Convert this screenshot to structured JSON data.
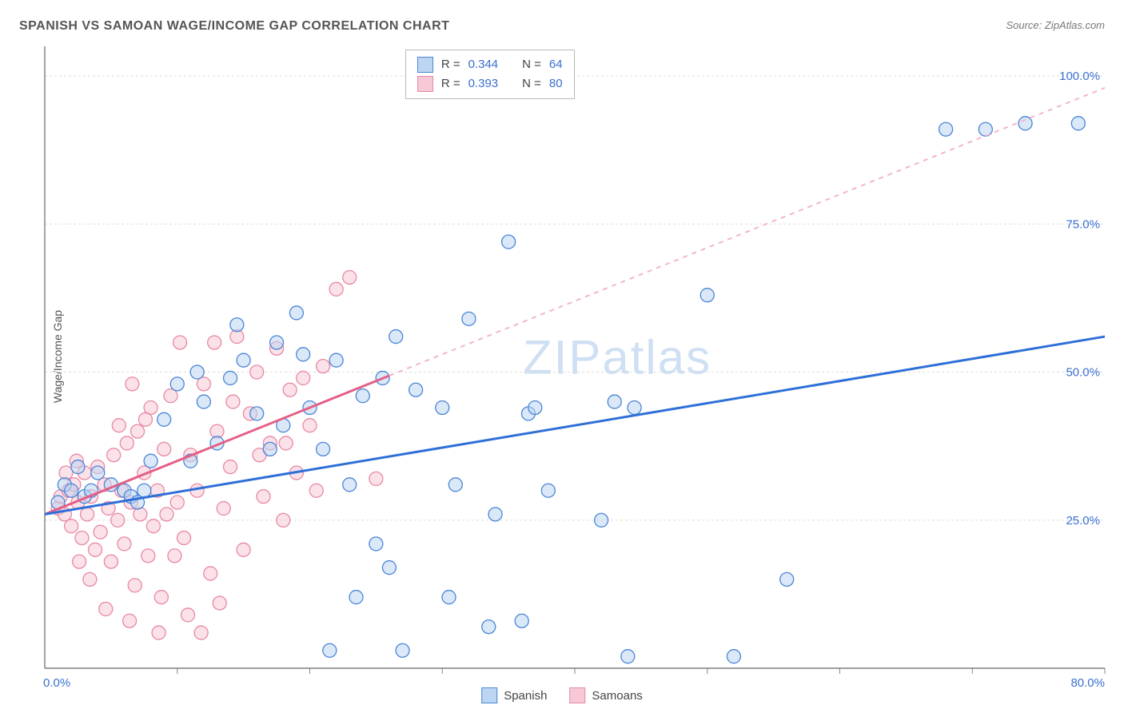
{
  "title": "SPANISH VS SAMOAN WAGE/INCOME GAP CORRELATION CHART",
  "source": "Source: ZipAtlas.com",
  "y_axis_label": "Wage/Income Gap",
  "watermark": {
    "a": "ZIP",
    "b": "atlas",
    "color": "#cfe0f4"
  },
  "colors": {
    "blue_stroke": "#4a86d8",
    "blue_fill": "#bcd5f2",
    "pink_stroke": "#e889a2",
    "pink_fill": "#f7c9d6",
    "blue_line": "#2e6fd8",
    "pink_line": "#e45f86",
    "pink_dash": "#f3b6c6",
    "grid": "#dddddd",
    "axis": "#666666",
    "tick": "#888888",
    "tick_label": "#3a6fd0",
    "bg": "#ffffff"
  },
  "chart": {
    "type": "scatter",
    "xlim": [
      0,
      80
    ],
    "ylim": [
      0,
      105
    ],
    "y_ticks": [
      25,
      50,
      75,
      100
    ],
    "y_tick_labels": [
      "25.0%",
      "50.0%",
      "75.0%",
      "100.0%"
    ],
    "x_ticks": [
      10,
      20,
      30,
      40,
      50,
      60,
      70,
      80
    ],
    "x_origin_label": "0.0%",
    "x_max_label": "80.0%",
    "marker_radius": 8.5,
    "marker_opacity": 0.55,
    "line_width": 3,
    "dash_pattern": "6 6"
  },
  "legend_stats": {
    "rows": [
      {
        "swatch_fill": "#bcd5f2",
        "swatch_stroke": "#4a86d8",
        "r_label": "R =",
        "r_value": "0.344",
        "n_label": "N =",
        "n_value": "64"
      },
      {
        "swatch_fill": "#f7c9d6",
        "swatch_stroke": "#e889a2",
        "r_label": "R =",
        "r_value": "0.393",
        "n_label": "N =",
        "n_value": "80"
      }
    ],
    "value_color": "#3a6fd0"
  },
  "bottom_legend": [
    {
      "swatch_fill": "#bcd5f2",
      "swatch_stroke": "#4a86d8",
      "label": "Spanish"
    },
    {
      "swatch_fill": "#f7c9d6",
      "swatch_stroke": "#e889a2",
      "label": "Samoans"
    }
  ],
  "series": {
    "spanish": {
      "color_fill": "#bcd5f2",
      "color_stroke": "#4a86d8",
      "trend": {
        "x1": 0,
        "y1": 26,
        "x2": 80,
        "y2": 56,
        "solid_to_x": 80
      },
      "points": [
        [
          1,
          28
        ],
        [
          1.5,
          31
        ],
        [
          2,
          30
        ],
        [
          2.5,
          34
        ],
        [
          3,
          29
        ],
        [
          3.5,
          30
        ],
        [
          4,
          33
        ],
        [
          5,
          31
        ],
        [
          6,
          30
        ],
        [
          6.5,
          29
        ],
        [
          7,
          28
        ],
        [
          7.5,
          30
        ],
        [
          8,
          35
        ],
        [
          9,
          42
        ],
        [
          10,
          48
        ],
        [
          11,
          35
        ],
        [
          11.5,
          50
        ],
        [
          12,
          45
        ],
        [
          13,
          38
        ],
        [
          14,
          49
        ],
        [
          14.5,
          58
        ],
        [
          15,
          52
        ],
        [
          16,
          43
        ],
        [
          17,
          37
        ],
        [
          17.5,
          55
        ],
        [
          18,
          41
        ],
        [
          19,
          60
        ],
        [
          19.5,
          53
        ],
        [
          20,
          44
        ],
        [
          21,
          37
        ],
        [
          21.5,
          3
        ],
        [
          22,
          52
        ],
        [
          23,
          31
        ],
        [
          23.5,
          12
        ],
        [
          24,
          46
        ],
        [
          25,
          21
        ],
        [
          25.5,
          49
        ],
        [
          26,
          17
        ],
        [
          26.5,
          56
        ],
        [
          27,
          3
        ],
        [
          28,
          47
        ],
        [
          30,
          44
        ],
        [
          30.5,
          12
        ],
        [
          31,
          31
        ],
        [
          32,
          59
        ],
        [
          33.5,
          7
        ],
        [
          34,
          26
        ],
        [
          35,
          72
        ],
        [
          36,
          8
        ],
        [
          36.5,
          43
        ],
        [
          37,
          44
        ],
        [
          38,
          30
        ],
        [
          42,
          25
        ],
        [
          43,
          45
        ],
        [
          44,
          2
        ],
        [
          44.5,
          44
        ],
        [
          50,
          63
        ],
        [
          52,
          2
        ],
        [
          56,
          15
        ],
        [
          68,
          91
        ],
        [
          71,
          91
        ],
        [
          74,
          92
        ],
        [
          78,
          92
        ]
      ]
    },
    "samoans": {
      "color_fill": "#f7c9d6",
      "color_stroke": "#e889a2",
      "trend": {
        "x1": 0,
        "y1": 26,
        "x2": 80,
        "y2": 98,
        "solid_to_x": 26
      },
      "points": [
        [
          1,
          27
        ],
        [
          1.2,
          29
        ],
        [
          1.5,
          26
        ],
        [
          1.8,
          30
        ],
        [
          2,
          24
        ],
        [
          2.2,
          31
        ],
        [
          2.5,
          28
        ],
        [
          2.8,
          22
        ],
        [
          3,
          33
        ],
        [
          3.2,
          26
        ],
        [
          3.5,
          29
        ],
        [
          3.8,
          20
        ],
        [
          4,
          34
        ],
        [
          4.2,
          23
        ],
        [
          4.5,
          31
        ],
        [
          4.8,
          27
        ],
        [
          5,
          18
        ],
        [
          5.2,
          36
        ],
        [
          5.5,
          25
        ],
        [
          5.8,
          30
        ],
        [
          6,
          21
        ],
        [
          6.2,
          38
        ],
        [
          6.5,
          28
        ],
        [
          6.8,
          14
        ],
        [
          7,
          40
        ],
        [
          7.2,
          26
        ],
        [
          7.5,
          33
        ],
        [
          7.8,
          19
        ],
        [
          8,
          44
        ],
        [
          8.2,
          24
        ],
        [
          8.5,
          30
        ],
        [
          8.8,
          12
        ],
        [
          9,
          37
        ],
        [
          9.5,
          46
        ],
        [
          10,
          28
        ],
        [
          10.2,
          55
        ],
        [
          10.5,
          22
        ],
        [
          11,
          36
        ],
        [
          11.5,
          30
        ],
        [
          12,
          48
        ],
        [
          12.5,
          16
        ],
        [
          13,
          40
        ],
        [
          13.5,
          27
        ],
        [
          14,
          34
        ],
        [
          14.5,
          56
        ],
        [
          15,
          20
        ],
        [
          15.5,
          43
        ],
        [
          16,
          50
        ],
        [
          16.5,
          29
        ],
        [
          17,
          38
        ],
        [
          17.5,
          54
        ],
        [
          18,
          25
        ],
        [
          18.5,
          47
        ],
        [
          19,
          33
        ],
        [
          20,
          41
        ],
        [
          20.5,
          30
        ],
        [
          21,
          51
        ],
        [
          22,
          64
        ],
        [
          23,
          66
        ],
        [
          25,
          32
        ],
        [
          19.5,
          49
        ],
        [
          4.6,
          10
        ],
        [
          6.4,
          8
        ],
        [
          8.6,
          6
        ],
        [
          10.8,
          9
        ],
        [
          13.2,
          11
        ],
        [
          11.8,
          6
        ],
        [
          3.4,
          15
        ],
        [
          2.6,
          18
        ],
        [
          5.6,
          41
        ],
        [
          6.6,
          48
        ],
        [
          7.6,
          42
        ],
        [
          12.8,
          55
        ],
        [
          2.4,
          35
        ],
        [
          1.6,
          33
        ],
        [
          9.2,
          26
        ],
        [
          9.8,
          19
        ],
        [
          14.2,
          45
        ],
        [
          16.2,
          36
        ],
        [
          18.2,
          38
        ]
      ]
    }
  }
}
